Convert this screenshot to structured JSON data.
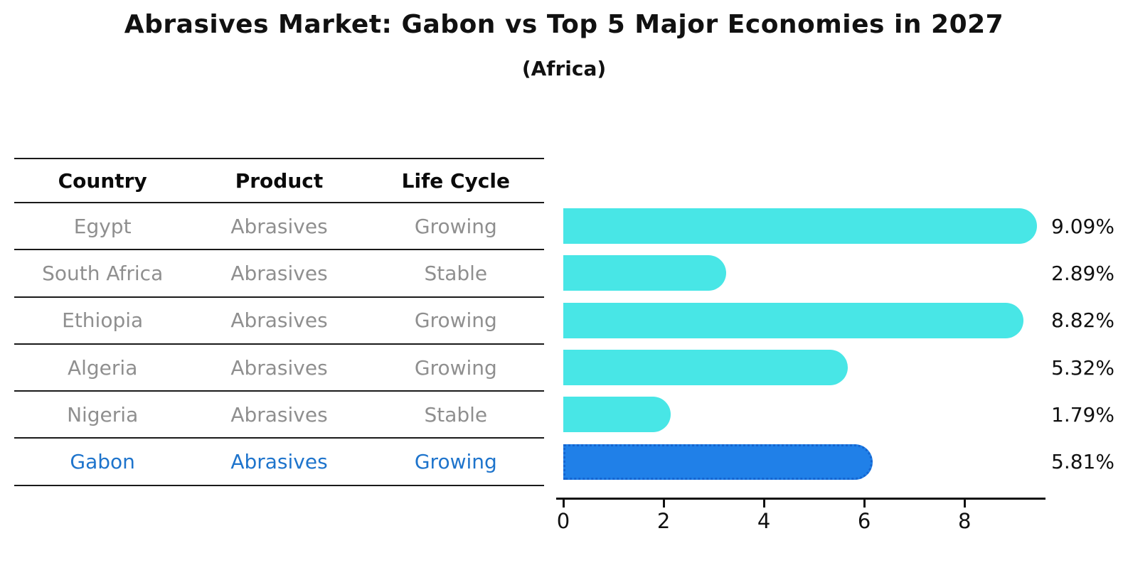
{
  "title": "Abrasives Market: Gabon vs Top 5 Major Economies in 2027",
  "subtitle": "(Africa)",
  "table": {
    "headers": [
      "Country",
      "Product",
      "Life Cycle"
    ]
  },
  "colors": {
    "bar": "#48E6E6",
    "highlight_bar": "#2080E8",
    "highlight_border": "#1565D0",
    "highlight_text": "#1E74CC",
    "row_text": "#8F8F8F",
    "axis": "#111111"
  },
  "chart_data": {
    "type": "bar",
    "orientation": "horizontal",
    "title": "Abrasives Market: Gabon vs Top 5 Major Economies in 2027",
    "subtitle": "(Africa)",
    "xlabel": "",
    "ylabel": "",
    "categories": [
      "Egypt",
      "South Africa",
      "Ethiopia",
      "Algeria",
      "Nigeria",
      "Gabon"
    ],
    "values": [
      9.09,
      2.89,
      8.82,
      5.32,
      1.79,
      5.81
    ],
    "value_labels": [
      "9.09%",
      "2.89%",
      "8.82%",
      "5.32%",
      "1.79%",
      "5.81%"
    ],
    "x_ticks": [
      0,
      2,
      4,
      6,
      8
    ],
    "xlim": [
      0,
      9.5
    ],
    "grid": false,
    "legend": "none",
    "highlight_index": 5,
    "rows": [
      {
        "country": "Egypt",
        "product": "Abrasives",
        "life_cycle": "Growing",
        "value": 9.09,
        "label": "9.09%",
        "highlight": false
      },
      {
        "country": "South Africa",
        "product": "Abrasives",
        "life_cycle": "Stable",
        "value": 2.89,
        "label": "2.89%",
        "highlight": false
      },
      {
        "country": "Ethiopia",
        "product": "Abrasives",
        "life_cycle": "Growing",
        "value": 8.82,
        "label": "8.82%",
        "highlight": false
      },
      {
        "country": "Algeria",
        "product": "Abrasives",
        "life_cycle": "Growing",
        "value": 5.32,
        "label": "5.32%",
        "highlight": false
      },
      {
        "country": "Nigeria",
        "product": "Abrasives",
        "life_cycle": "Stable",
        "value": 1.79,
        "label": "1.79%",
        "highlight": false
      },
      {
        "country": "Gabon",
        "product": "Abrasives",
        "life_cycle": "Growing",
        "value": 5.81,
        "label": "5.81%",
        "highlight": true
      }
    ]
  }
}
